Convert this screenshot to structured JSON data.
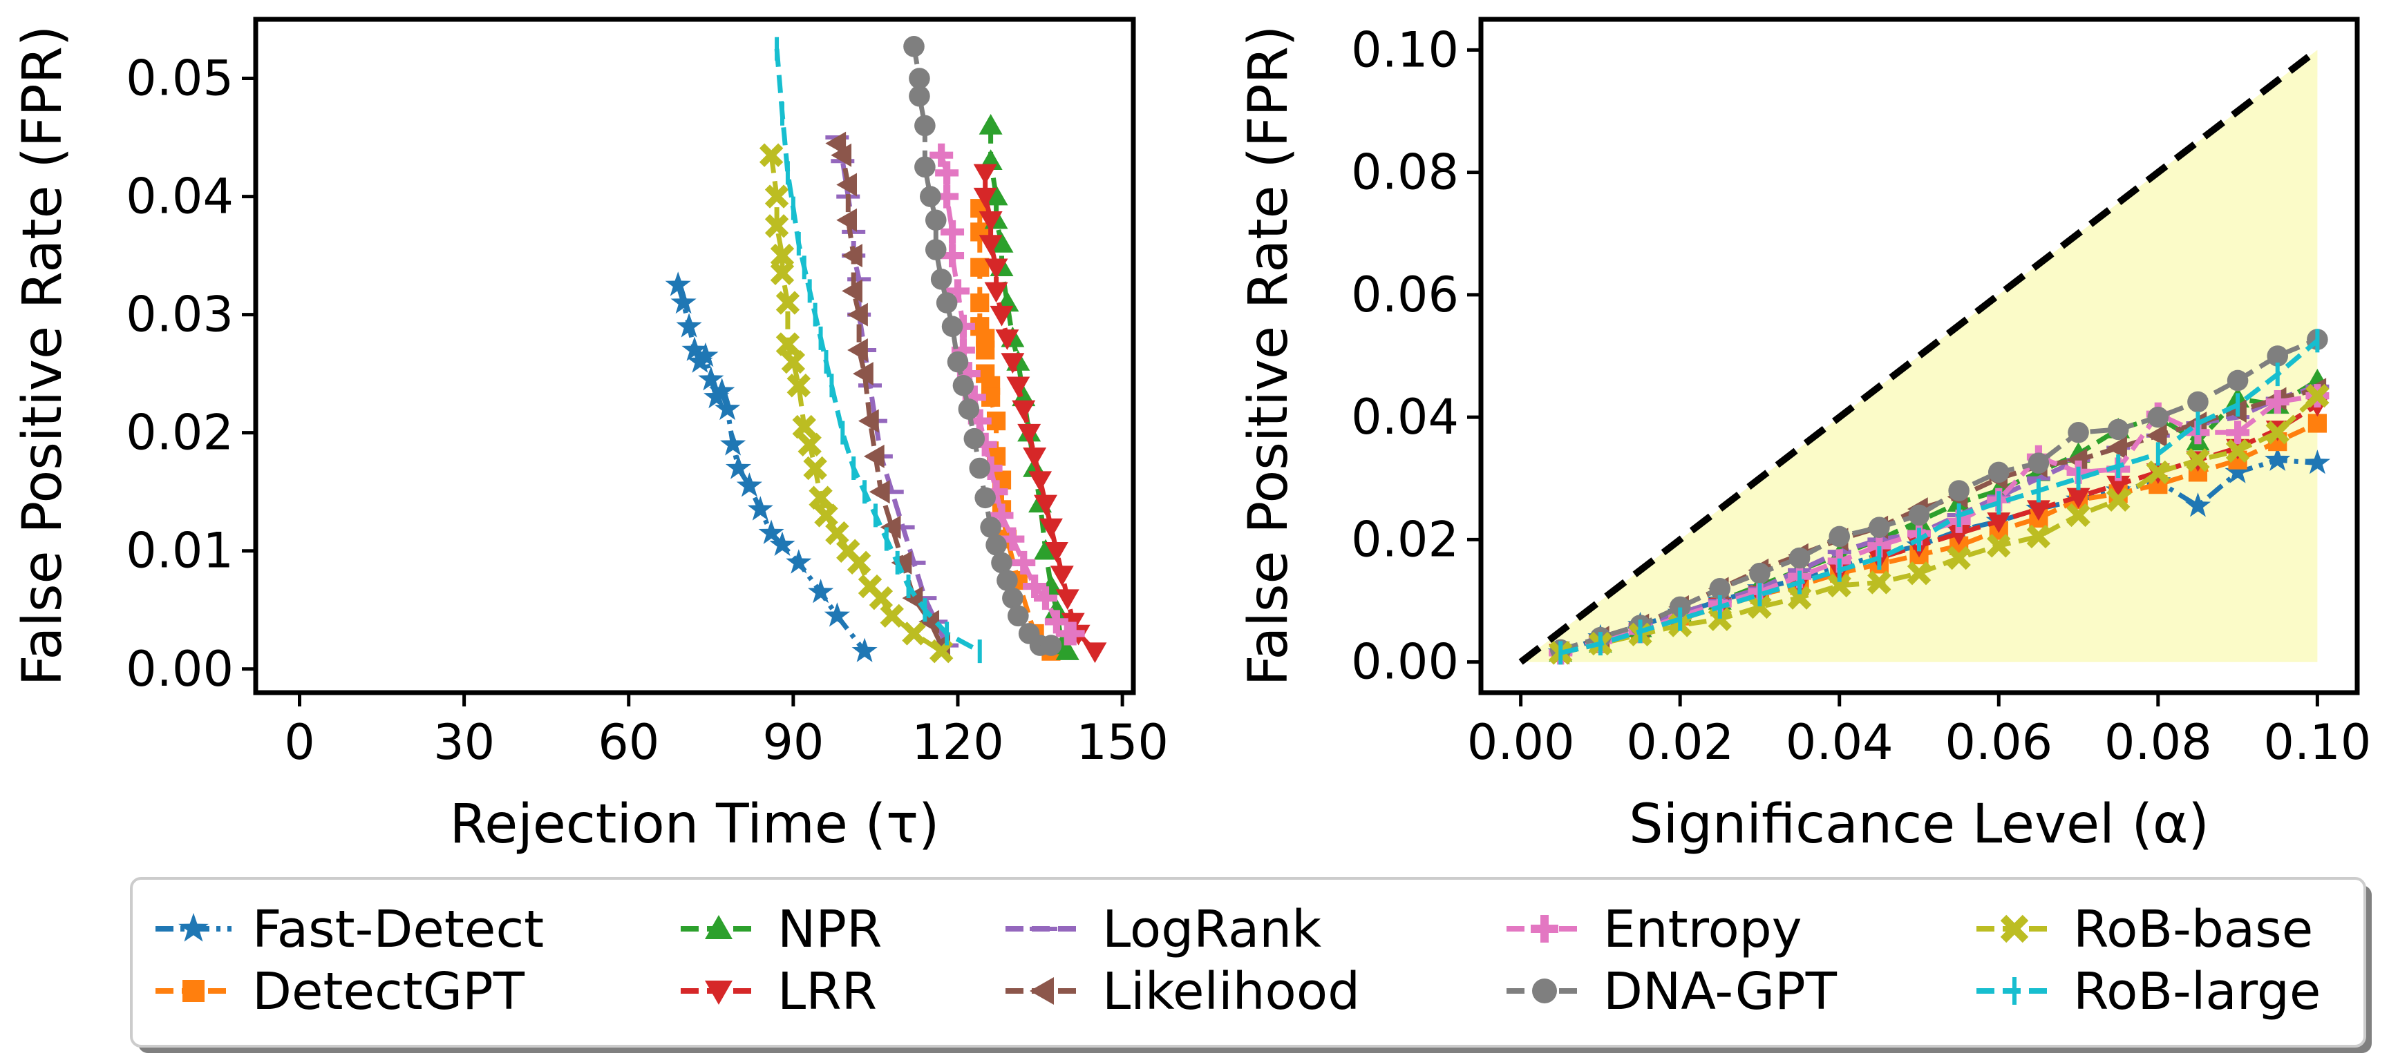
{
  "legend": {
    "items": [
      {
        "name": "Fast-Detect",
        "color": "#1f77b4",
        "marker": "star",
        "dash": "dashdot"
      },
      {
        "name": "DetectGPT",
        "color": "#ff7f0e",
        "marker": "square",
        "dash": "dash"
      },
      {
        "name": "NPR",
        "color": "#2ca02c",
        "marker": "triangle-up",
        "dash": "dash"
      },
      {
        "name": "LRR",
        "color": "#d62728",
        "marker": "triangle-down",
        "dash": "dash"
      },
      {
        "name": "LogRank",
        "color": "#9467bd",
        "marker": "hline",
        "dash": "dash"
      },
      {
        "name": "Likelihood",
        "color": "#8c564b",
        "marker": "triangle-left",
        "dash": "dash"
      },
      {
        "name": "Entropy",
        "color": "#e377c2",
        "marker": "plus",
        "dash": "dash"
      },
      {
        "name": "DNA-GPT",
        "color": "#7f7f7f",
        "marker": "circle",
        "dash": "dash"
      },
      {
        "name": "RoB-base",
        "color": "#bcbd22",
        "marker": "x",
        "dash": "dash"
      },
      {
        "name": "RoB-large",
        "color": "#17becf",
        "marker": "vline",
        "dash": "dash"
      }
    ]
  },
  "chart_data": [
    {
      "type": "line",
      "title": "",
      "xlabel": "Rejection Time (τ)",
      "ylabel": "False Positive Rate (FPR)",
      "xlim": [
        -8,
        152
      ],
      "ylim": [
        -0.002,
        0.055
      ],
      "xticks": [
        0,
        30,
        60,
        90,
        120,
        150
      ],
      "xtick_labels": [
        "0",
        "30",
        "60",
        "90",
        "120",
        "150"
      ],
      "yticks": [
        0.0,
        0.01,
        0.02,
        0.03,
        0.04,
        0.05
      ],
      "ytick_labels": [
        "0.00",
        "0.01",
        "0.02",
        "0.03",
        "0.04",
        "0.05"
      ],
      "grid": false,
      "series": [
        {
          "name": "Fast-Detect",
          "x": [
            69,
            70,
            71,
            72,
            73,
            74,
            75,
            76,
            77,
            78,
            79,
            80,
            82,
            84,
            86,
            88,
            91,
            95,
            98,
            103
          ],
          "y": [
            0.0325,
            0.031,
            0.029,
            0.027,
            0.026,
            0.0265,
            0.0245,
            0.023,
            0.0235,
            0.022,
            0.019,
            0.017,
            0.0155,
            0.0135,
            0.0115,
            0.0105,
            0.009,
            0.0065,
            0.0045,
            0.0015
          ]
        },
        {
          "name": "DetectGPT",
          "x": [
            124,
            124,
            124,
            124,
            124,
            125,
            125,
            125,
            126,
            126,
            127,
            127,
            128,
            128,
            129,
            131,
            134,
            137
          ],
          "y": [
            0.039,
            0.037,
            0.034,
            0.031,
            0.029,
            0.028,
            0.027,
            0.025,
            0.024,
            0.023,
            0.021,
            0.018,
            0.016,
            0.0135,
            0.011,
            0.0075,
            0.003,
            0.0015
          ]
        },
        {
          "name": "NPR",
          "x": [
            126,
            126,
            127,
            127,
            128,
            128,
            129,
            130,
            131,
            132,
            133,
            134,
            135,
            136,
            137,
            138,
            139,
            140
          ],
          "y": [
            0.046,
            0.043,
            0.04,
            0.038,
            0.036,
            0.034,
            0.031,
            0.028,
            0.026,
            0.023,
            0.02,
            0.017,
            0.014,
            0.01,
            0.007,
            0.005,
            0.002,
            0.0015
          ]
        },
        {
          "name": "LRR",
          "x": [
            125,
            125,
            126,
            126,
            127,
            127,
            128,
            129,
            130,
            131,
            132,
            133,
            134,
            135,
            136,
            137,
            138,
            139,
            140,
            141,
            142,
            145
          ],
          "y": [
            0.042,
            0.04,
            0.038,
            0.036,
            0.034,
            0.032,
            0.03,
            0.028,
            0.026,
            0.024,
            0.022,
            0.02,
            0.018,
            0.016,
            0.014,
            0.012,
            0.01,
            0.008,
            0.006,
            0.004,
            0.003,
            0.0015
          ]
        },
        {
          "name": "LogRank",
          "x": [
            98,
            99,
            100,
            101,
            101,
            102,
            102,
            103,
            104,
            105,
            106,
            108,
            110,
            112,
            114,
            116,
            118
          ],
          "y": [
            0.045,
            0.043,
            0.04,
            0.037,
            0.035,
            0.033,
            0.03,
            0.027,
            0.024,
            0.021,
            0.018,
            0.015,
            0.012,
            0.009,
            0.006,
            0.004,
            0.002
          ]
        },
        {
          "name": "Likelihood",
          "x": [
            98,
            99,
            100,
            100,
            101,
            101,
            102,
            102,
            103,
            104,
            105,
            106,
            108,
            110,
            112,
            115,
            117
          ],
          "y": [
            0.0445,
            0.0435,
            0.041,
            0.038,
            0.035,
            0.032,
            0.03,
            0.027,
            0.025,
            0.021,
            0.018,
            0.015,
            0.012,
            0.009,
            0.006,
            0.004,
            0.002
          ]
        },
        {
          "name": "Entropy",
          "x": [
            117,
            118,
            118,
            119,
            119,
            120,
            121,
            121,
            122,
            123,
            124,
            125,
            126,
            127,
            128,
            130,
            132,
            134,
            136,
            138,
            140,
            141
          ],
          "y": [
            0.0435,
            0.042,
            0.04,
            0.037,
            0.035,
            0.032,
            0.029,
            0.027,
            0.025,
            0.023,
            0.021,
            0.019,
            0.017,
            0.015,
            0.013,
            0.011,
            0.009,
            0.007,
            0.006,
            0.004,
            0.003,
            0.003
          ]
        },
        {
          "name": "DNA-GPT",
          "x": [
            112,
            113,
            113,
            114,
            114,
            115,
            116,
            116,
            117,
            118,
            119,
            120,
            121,
            122,
            123,
            124,
            125,
            126,
            127,
            128,
            129,
            130,
            131,
            133,
            135,
            137
          ],
          "y": [
            0.0527,
            0.05,
            0.0485,
            0.046,
            0.0425,
            0.04,
            0.038,
            0.0355,
            0.033,
            0.031,
            0.029,
            0.026,
            0.024,
            0.022,
            0.0195,
            0.017,
            0.0145,
            0.012,
            0.0105,
            0.009,
            0.0075,
            0.006,
            0.0045,
            0.003,
            0.002,
            0.002
          ]
        },
        {
          "name": "RoB-base",
          "x": [
            86,
            87,
            87,
            88,
            88,
            89,
            89,
            90,
            91,
            92,
            93,
            94,
            95,
            96,
            98,
            100,
            102,
            104,
            106,
            108,
            112,
            117
          ],
          "y": [
            0.0435,
            0.04,
            0.0375,
            0.035,
            0.0335,
            0.031,
            0.0275,
            0.026,
            0.024,
            0.0205,
            0.019,
            0.017,
            0.0145,
            0.013,
            0.0115,
            0.01,
            0.009,
            0.007,
            0.006,
            0.0045,
            0.003,
            0.0015
          ]
        },
        {
          "name": "RoB-large",
          "x": [
            87,
            88,
            89,
            90,
            91,
            92,
            93,
            94,
            95,
            96,
            97,
            99,
            101,
            103,
            105,
            107,
            109,
            111,
            114,
            118,
            124
          ],
          "y": [
            0.0525,
            0.047,
            0.042,
            0.039,
            0.036,
            0.034,
            0.032,
            0.03,
            0.028,
            0.026,
            0.024,
            0.02,
            0.017,
            0.015,
            0.013,
            0.011,
            0.009,
            0.007,
            0.005,
            0.003,
            0.0015
          ]
        }
      ]
    },
    {
      "type": "line",
      "title": "",
      "xlabel": "Significance Level (α)",
      "ylabel": "False Positive Rate (FPR)",
      "xlim": [
        -0.005,
        0.105
      ],
      "ylim": [
        -0.005,
        0.105
      ],
      "xticks": [
        0.0,
        0.02,
        0.04,
        0.06,
        0.08,
        0.1
      ],
      "xtick_labels": [
        "0.00",
        "0.02",
        "0.04",
        "0.06",
        "0.08",
        "0.10"
      ],
      "yticks": [
        0.0,
        0.02,
        0.04,
        0.06,
        0.08,
        0.1
      ],
      "ytick_labels": [
        "0.00",
        "0.02",
        "0.04",
        "0.06",
        "0.08",
        "0.10"
      ],
      "grid": false,
      "reference_line": {
        "style": "dashed",
        "color": "#000000",
        "x": [
          0.0,
          0.1
        ],
        "y": [
          0.0,
          0.1
        ]
      },
      "shaded_region": {
        "color": "#fbfbc8",
        "x": [
          0.0,
          0.1
        ],
        "y_lower": [
          0.0,
          0.0
        ],
        "y_upper": [
          0.0,
          0.1
        ]
      },
      "alpha": [
        0.005,
        0.01,
        0.015,
        0.02,
        0.025,
        0.03,
        0.035,
        0.04,
        0.045,
        0.05,
        0.055,
        0.06,
        0.065,
        0.07,
        0.075,
        0.08,
        0.085,
        0.09,
        0.095,
        0.1
      ],
      "series": [
        {
          "name": "Fast-Detect",
          "values": [
            0.0015,
            0.004,
            0.006,
            0.008,
            0.01,
            0.012,
            0.0135,
            0.0155,
            0.0175,
            0.019,
            0.0215,
            0.023,
            0.025,
            0.0265,
            0.028,
            0.0295,
            0.0255,
            0.031,
            0.033,
            0.0325
          ]
        },
        {
          "name": "DetectGPT",
          "values": [
            0.0015,
            0.003,
            0.005,
            0.0075,
            0.009,
            0.011,
            0.0125,
            0.0145,
            0.016,
            0.0175,
            0.019,
            0.0215,
            0.0235,
            0.0265,
            0.0275,
            0.029,
            0.031,
            0.033,
            0.036,
            0.039
          ]
        },
        {
          "name": "NPR",
          "values": [
            0.0015,
            0.003,
            0.0055,
            0.008,
            0.01,
            0.0125,
            0.015,
            0.0175,
            0.02,
            0.023,
            0.026,
            0.028,
            0.031,
            0.034,
            0.038,
            0.04,
            0.036,
            0.043,
            0.042,
            0.046
          ]
        },
        {
          "name": "LRR",
          "values": [
            0.0015,
            0.003,
            0.005,
            0.007,
            0.009,
            0.011,
            0.013,
            0.015,
            0.017,
            0.019,
            0.021,
            0.023,
            0.025,
            0.027,
            0.029,
            0.031,
            0.033,
            0.035,
            0.038,
            0.042
          ]
        },
        {
          "name": "LogRank",
          "values": [
            0.0015,
            0.004,
            0.006,
            0.008,
            0.01,
            0.012,
            0.015,
            0.018,
            0.02,
            0.021,
            0.024,
            0.027,
            0.03,
            0.033,
            0.035,
            0.037,
            0.039,
            0.04,
            0.043,
            0.045
          ]
        },
        {
          "name": "Likelihood",
          "values": [
            0.0015,
            0.004,
            0.006,
            0.009,
            0.012,
            0.015,
            0.0175,
            0.02,
            0.022,
            0.025,
            0.027,
            0.03,
            0.032,
            0.033,
            0.035,
            0.037,
            0.039,
            0.041,
            0.043,
            0.0445
          ]
        },
        {
          "name": "Entropy",
          "values": [
            0.0015,
            0.0035,
            0.005,
            0.0075,
            0.0095,
            0.0115,
            0.014,
            0.0165,
            0.019,
            0.021,
            0.023,
            0.0265,
            0.0335,
            0.031,
            0.0315,
            0.0405,
            0.0375,
            0.0375,
            0.0425,
            0.0435
          ]
        },
        {
          "name": "DNA-GPT",
          "values": [
            0.002,
            0.004,
            0.006,
            0.009,
            0.012,
            0.0145,
            0.017,
            0.0205,
            0.022,
            0.024,
            0.028,
            0.031,
            0.0325,
            0.0375,
            0.038,
            0.04,
            0.0425,
            0.046,
            0.05,
            0.0527
          ]
        },
        {
          "name": "RoB-base",
          "values": [
            0.0015,
            0.003,
            0.0045,
            0.006,
            0.007,
            0.009,
            0.0105,
            0.0125,
            0.013,
            0.0145,
            0.017,
            0.019,
            0.0205,
            0.024,
            0.0265,
            0.031,
            0.033,
            0.0345,
            0.0375,
            0.0435
          ]
        },
        {
          "name": "RoB-large",
          "values": [
            0.0015,
            0.003,
            0.005,
            0.007,
            0.009,
            0.011,
            0.013,
            0.015,
            0.017,
            0.02,
            0.024,
            0.026,
            0.028,
            0.03,
            0.032,
            0.034,
            0.039,
            0.042,
            0.047,
            0.0525
          ]
        }
      ]
    }
  ]
}
